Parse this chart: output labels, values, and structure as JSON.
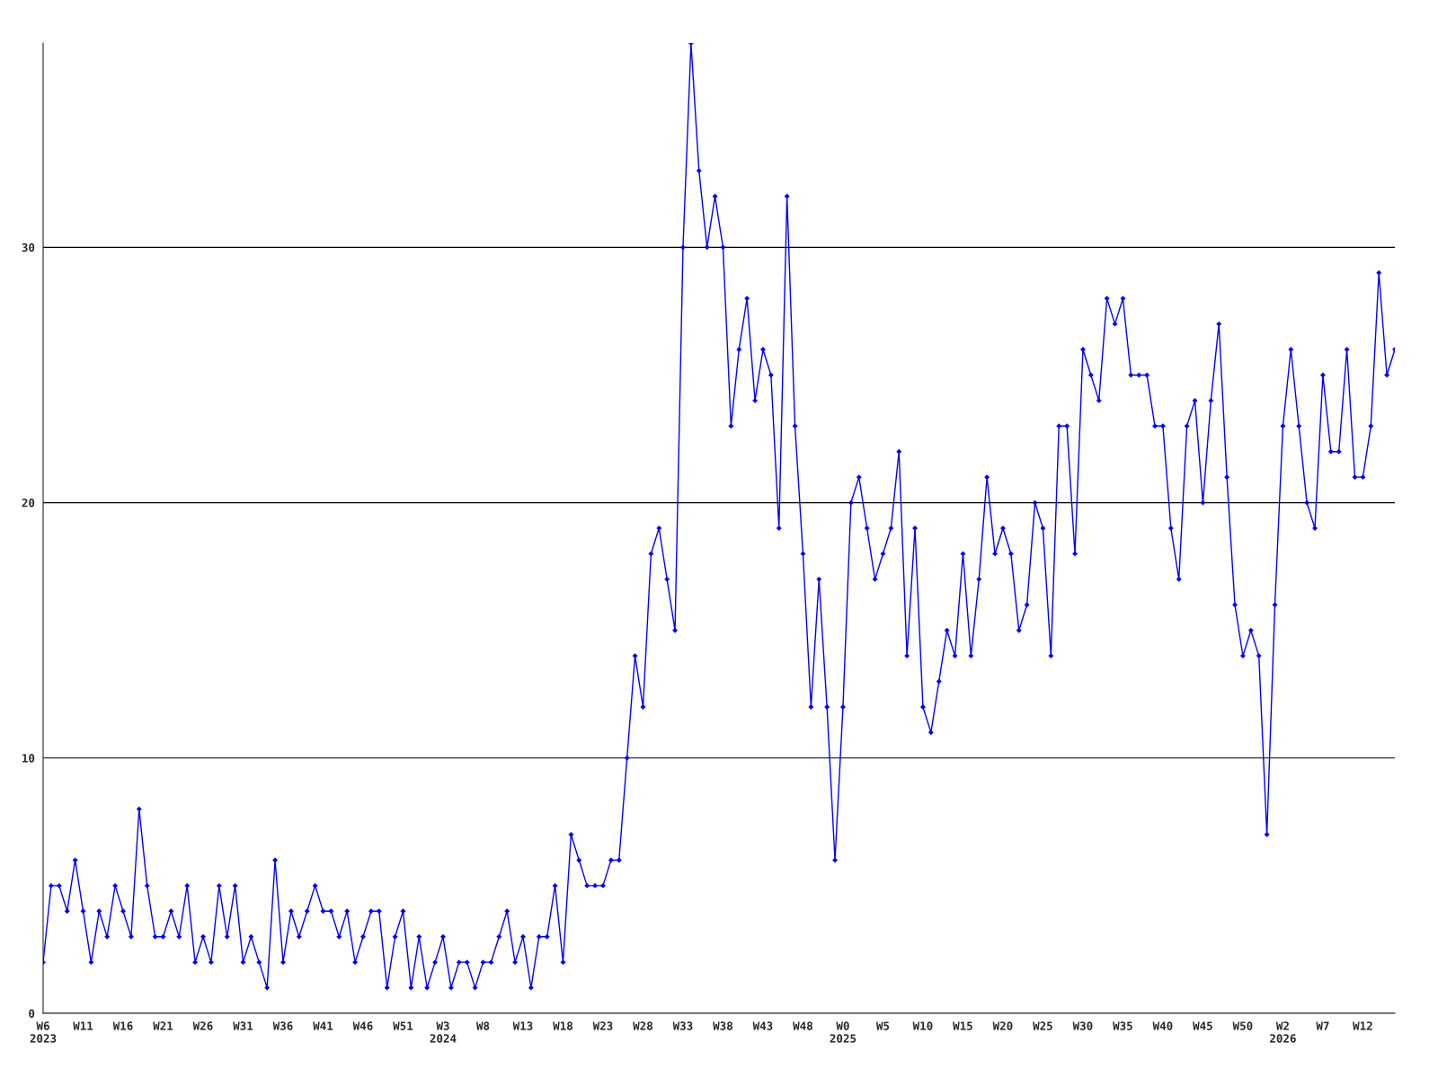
{
  "chart_data": {
    "type": "line",
    "categories": [
      "W6\n2023",
      null,
      null,
      null,
      null,
      "W11",
      null,
      null,
      null,
      null,
      "W16",
      null,
      null,
      null,
      null,
      "W21",
      null,
      null,
      null,
      null,
      "W26",
      null,
      null,
      null,
      null,
      "W31",
      null,
      null,
      null,
      null,
      "W36",
      null,
      null,
      null,
      null,
      "W41",
      null,
      null,
      null,
      null,
      "W46",
      null,
      null,
      null,
      null,
      "W51",
      null,
      null,
      null,
      null,
      "W3\n2024",
      null,
      null,
      null,
      null,
      "W8",
      null,
      null,
      null,
      null,
      "W13",
      null,
      null,
      null,
      null,
      "W18",
      null,
      null,
      null,
      null,
      "W23",
      null,
      null,
      null,
      null,
      "W28",
      null,
      null,
      null,
      null,
      "W33",
      null,
      null,
      null,
      null,
      "W38",
      null,
      null,
      null,
      null,
      "W43",
      null,
      null,
      null,
      null,
      "W48",
      null,
      null,
      null,
      null,
      "W0\n2025",
      null,
      null,
      null,
      null,
      "W5",
      null,
      null,
      null,
      null,
      "W10",
      null,
      null,
      null,
      null,
      "W15",
      null,
      null,
      null,
      null,
      "W20",
      null,
      null,
      null,
      null,
      "W25",
      null,
      null,
      null,
      null,
      "W30",
      null,
      null,
      null,
      null,
      "W35",
      null,
      null,
      null,
      null,
      "W40",
      null,
      null,
      null,
      null,
      "W45",
      null,
      null,
      null,
      null,
      "W50",
      null,
      null,
      null,
      null,
      "W2\n2026",
      null,
      null,
      null,
      null,
      "W7",
      null,
      null,
      null,
      null,
      "W12",
      null,
      null,
      null,
      null
    ],
    "series": [
      {
        "color": "#0000ff",
        "values": [
          2,
          5,
          5,
          4,
          6,
          4,
          2,
          4,
          3,
          5,
          4,
          3,
          8,
          5,
          3,
          3,
          4,
          3,
          5,
          2,
          3,
          2,
          5,
          3,
          5,
          2,
          3,
          2,
          1,
          6,
          2,
          4,
          3,
          4,
          5,
          4,
          4,
          3,
          4,
          2,
          3,
          4,
          4,
          1,
          3,
          4,
          1,
          3,
          1,
          2,
          3,
          1,
          2,
          2,
          1,
          2,
          2,
          3,
          4,
          2,
          3,
          1,
          3,
          3,
          5,
          2,
          7,
          6,
          5,
          5,
          5,
          6,
          6,
          10,
          14,
          12,
          18,
          19,
          17,
          15,
          30,
          38,
          33,
          30,
          32,
          30,
          23,
          26,
          28,
          24,
          26,
          25,
          19,
          32,
          23,
          18,
          12,
          17,
          12,
          6,
          12,
          20,
          21,
          19,
          17,
          18,
          19,
          22,
          14,
          19,
          12,
          11,
          13,
          15,
          14,
          18,
          14,
          17,
          21,
          18,
          19,
          18,
          15,
          16,
          20,
          19,
          14,
          23,
          23,
          18,
          26,
          25,
          24,
          28,
          27,
          28,
          25,
          25,
          25,
          23,
          23,
          19,
          17,
          23,
          24,
          20,
          24,
          27,
          21,
          16,
          14,
          15,
          14,
          7,
          16,
          23,
          26,
          23,
          20,
          19,
          25,
          22,
          22,
          26,
          21,
          21,
          23,
          29,
          25,
          26
        ]
      }
    ],
    "ylim": [
      0,
      38
    ],
    "yticks": [
      0,
      10,
      20,
      30
    ],
    "grid": "y",
    "marker": "diamond",
    "line_style": "solid"
  }
}
